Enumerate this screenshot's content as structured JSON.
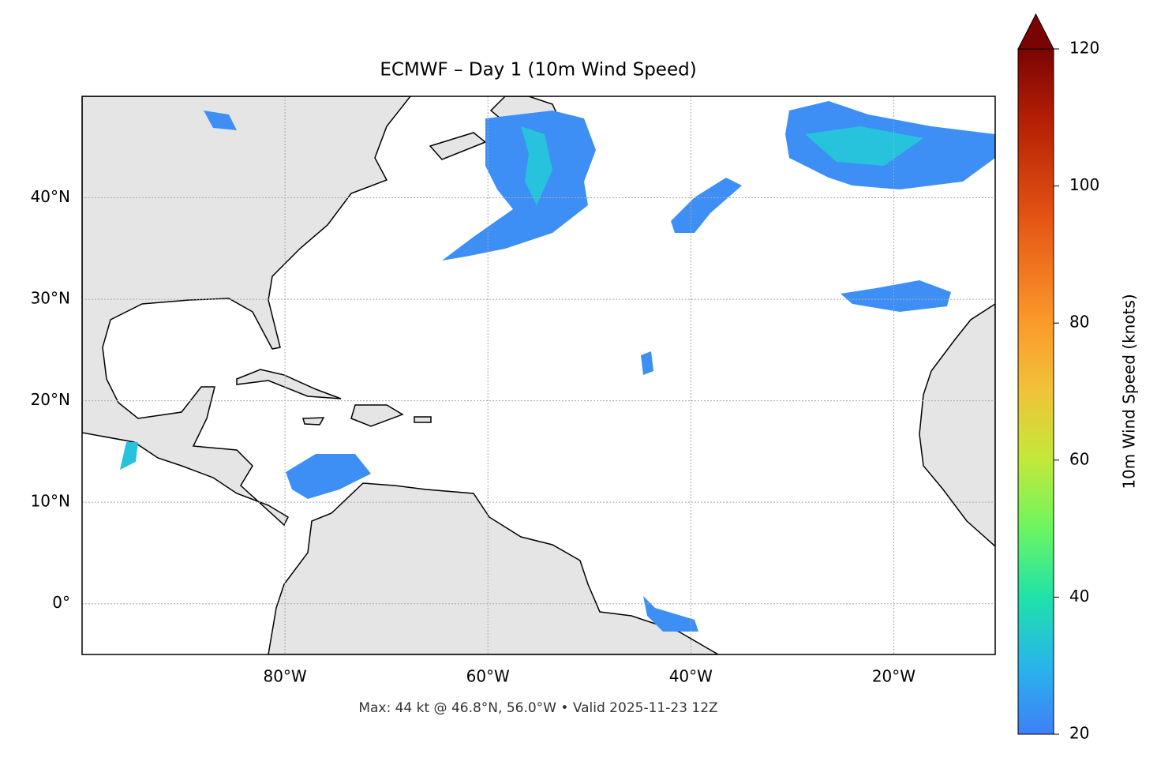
{
  "title": "ECMWF – Day 1 (10m Wind Speed)",
  "map": {
    "type": "map",
    "xlim": [
      -100,
      -10
    ],
    "ylim": [
      -5,
      50
    ],
    "xticks": [
      {
        "value": -80,
        "label": "80°W"
      },
      {
        "value": -60,
        "label": "60°W"
      },
      {
        "value": -40,
        "label": "40°W"
      },
      {
        "value": -20,
        "label": "20°W"
      }
    ],
    "yticks": [
      {
        "value": 0,
        "label": "0°"
      },
      {
        "value": 10,
        "label": "10°N"
      },
      {
        "value": 20,
        "label": "20°N"
      },
      {
        "value": 30,
        "label": "30°N"
      },
      {
        "value": 40,
        "label": "40°N"
      }
    ],
    "grid": true
  },
  "colorbar": {
    "label": "10m Wind Speed (knots)",
    "clim": [
      20,
      120
    ],
    "ticks": [
      20,
      40,
      60,
      80,
      100,
      120
    ],
    "extend": "max"
  },
  "footer": "Max: 44 kt @ 46.8°N, 56.0°W • Valid 2025-11-23 12Z"
}
